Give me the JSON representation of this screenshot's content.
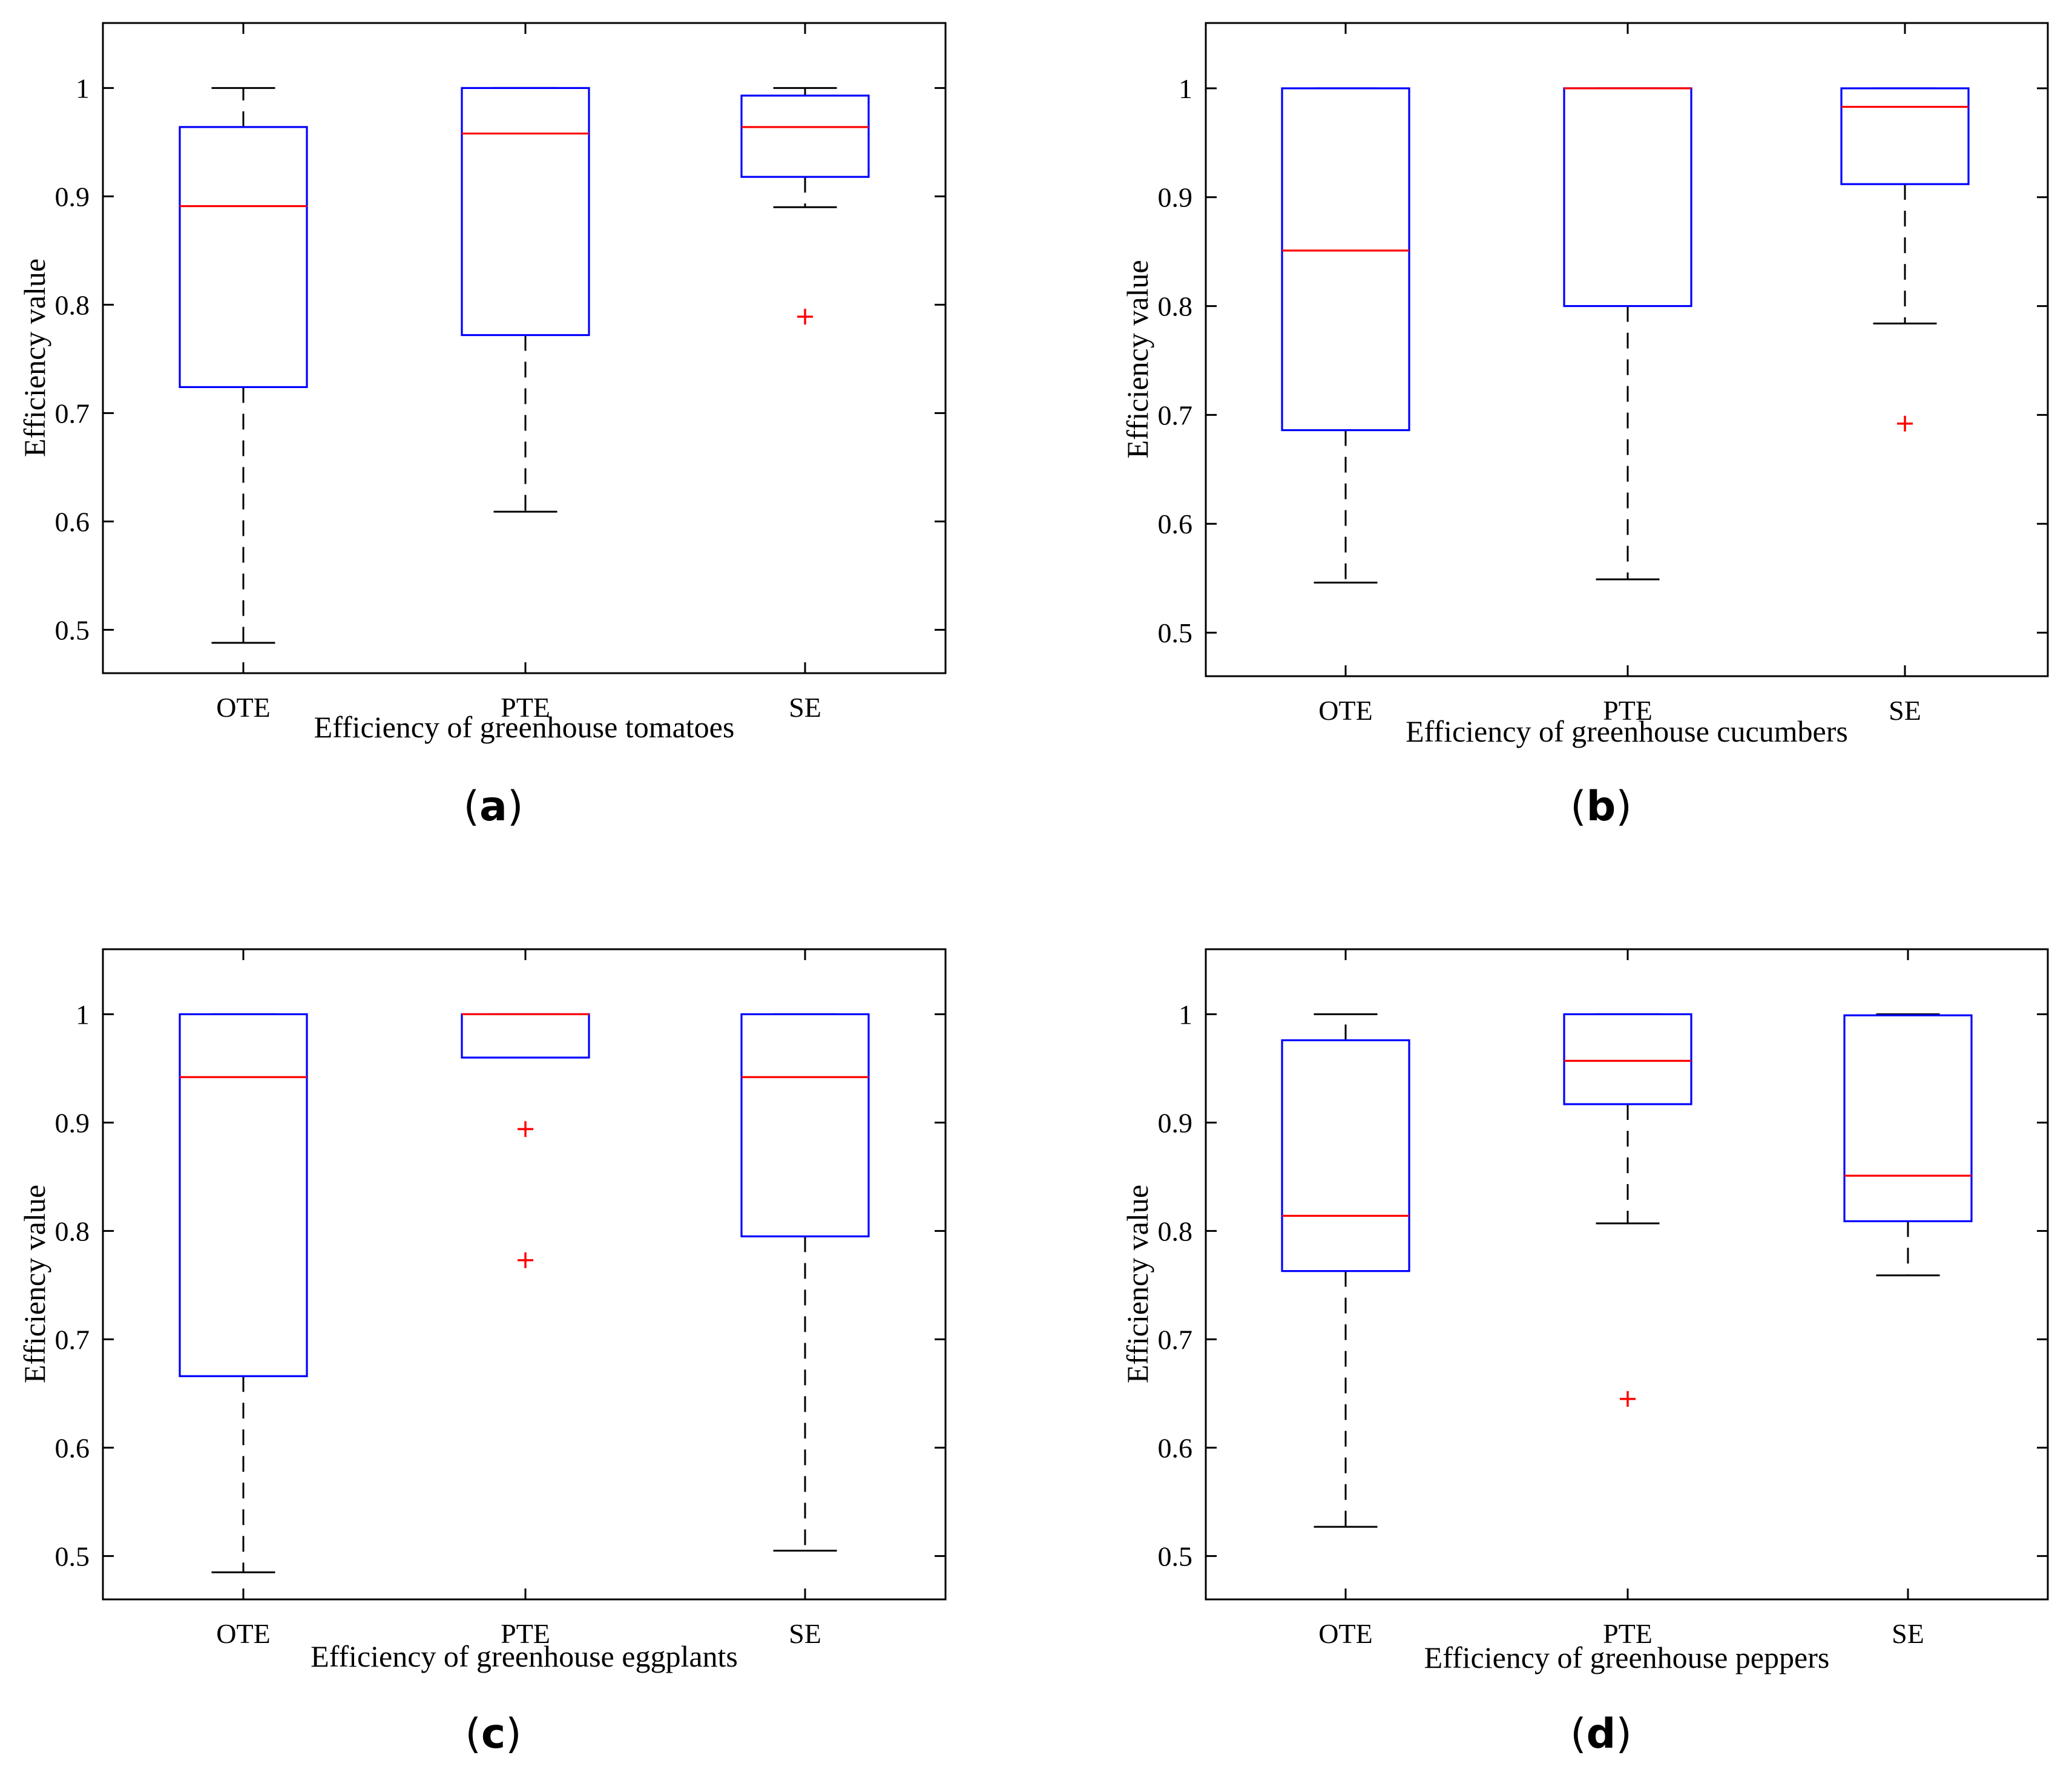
{
  "chart_data": [
    {
      "panel_label": "(a)",
      "type": "boxplot",
      "xlabel": "Efficiency of greenhouse tomatoes",
      "ylabel": "Efficiency value",
      "ylim": [
        0.46,
        1.06
      ],
      "yticks": [
        0.5,
        0.6,
        0.7,
        0.8,
        0.9,
        1
      ],
      "ytick_labels": [
        "0.5",
        "0.6",
        "0.7",
        "0.8",
        "0.9",
        "1"
      ],
      "categories": [
        "OTE",
        "PTE",
        "SE"
      ],
      "boxes": [
        {
          "name": "OTE",
          "whisker_low": 0.488,
          "q1": 0.724,
          "median": 0.891,
          "q3": 0.964,
          "whisker_high": 1.0,
          "outliers": []
        },
        {
          "name": "PTE",
          "whisker_low": 0.609,
          "q1": 0.772,
          "median": 0.958,
          "q3": 1.0,
          "whisker_high": 1.0,
          "outliers": []
        },
        {
          "name": "SE",
          "whisker_low": 0.89,
          "q1": 0.918,
          "median": 0.964,
          "q3": 0.993,
          "whisker_high": 1.0,
          "outliers": [
            0.789
          ]
        }
      ]
    },
    {
      "panel_label": "(b)",
      "type": "boxplot",
      "xlabel": "Efficiency of greenhouse cucumbers",
      "ylabel": "Efficiency value",
      "ylim": [
        0.46,
        1.06
      ],
      "yticks": [
        0.5,
        0.6,
        0.7,
        0.8,
        0.9,
        1
      ],
      "ytick_labels": [
        "0.5",
        "0.6",
        "0.7",
        "0.8",
        "0.9",
        "1"
      ],
      "categories": [
        "OTE",
        "PTE",
        "SE"
      ],
      "boxes": [
        {
          "name": "OTE",
          "whisker_low": 0.546,
          "q1": 0.686,
          "median": 0.851,
          "q3": 1.0,
          "whisker_high": 1.0,
          "outliers": []
        },
        {
          "name": "PTE",
          "whisker_low": 0.549,
          "q1": 0.8,
          "median": 1.0,
          "q3": 1.0,
          "whisker_high": 1.0,
          "outliers": []
        },
        {
          "name": "SE",
          "whisker_low": 0.784,
          "q1": 0.912,
          "median": 0.983,
          "q3": 1.0,
          "whisker_high": 1.0,
          "outliers": [
            0.692
          ]
        }
      ]
    },
    {
      "panel_label": "(c)",
      "type": "boxplot",
      "xlabel": "Efficiency of greenhouse eggplants",
      "ylabel": "Efficiency value",
      "ylim": [
        0.46,
        1.06
      ],
      "yticks": [
        0.5,
        0.6,
        0.7,
        0.8,
        0.9,
        1
      ],
      "ytick_labels": [
        "0.5",
        "0.6",
        "0.7",
        "0.8",
        "0.9",
        "1"
      ],
      "categories": [
        "OTE",
        "PTE",
        "SE"
      ],
      "boxes": [
        {
          "name": "OTE",
          "whisker_low": 0.485,
          "q1": 0.666,
          "median": 0.942,
          "q3": 1.0,
          "whisker_high": 1.0,
          "outliers": []
        },
        {
          "name": "PTE",
          "whisker_low": 0.96,
          "q1": 0.96,
          "median": 1.0,
          "q3": 1.0,
          "whisker_high": 1.0,
          "outliers": [
            0.894,
            0.773
          ]
        },
        {
          "name": "SE",
          "whisker_low": 0.505,
          "q1": 0.795,
          "median": 0.942,
          "q3": 1.0,
          "whisker_high": 1.0,
          "outliers": []
        }
      ]
    },
    {
      "panel_label": "(d)",
      "type": "boxplot",
      "xlabel": "Efficiency of greenhouse peppers",
      "ylabel": "Efficiency value",
      "ylim": [
        0.46,
        1.06
      ],
      "yticks": [
        0.5,
        0.6,
        0.7,
        0.8,
        0.9,
        1
      ],
      "ytick_labels": [
        "0.5",
        "0.6",
        "0.7",
        "0.8",
        "0.9",
        "1"
      ],
      "categories": [
        "OTE",
        "PTE",
        "SE"
      ],
      "boxes": [
        {
          "name": "OTE",
          "whisker_low": 0.527,
          "q1": 0.763,
          "median": 0.814,
          "q3": 0.976,
          "whisker_high": 1.0,
          "outliers": []
        },
        {
          "name": "PTE",
          "whisker_low": 0.807,
          "q1": 0.917,
          "median": 0.957,
          "q3": 1.0,
          "whisker_high": 1.0,
          "outliers": [
            0.645
          ]
        },
        {
          "name": "SE",
          "whisker_low": 0.759,
          "q1": 0.809,
          "median": 0.851,
          "q3": 0.999,
          "whisker_high": 1.0,
          "outliers": []
        }
      ]
    }
  ],
  "colors": {
    "box": "#0000ff",
    "median": "#ff0000",
    "outlier": "#ff0000",
    "whisker": "#000000",
    "axis": "#000000"
  }
}
